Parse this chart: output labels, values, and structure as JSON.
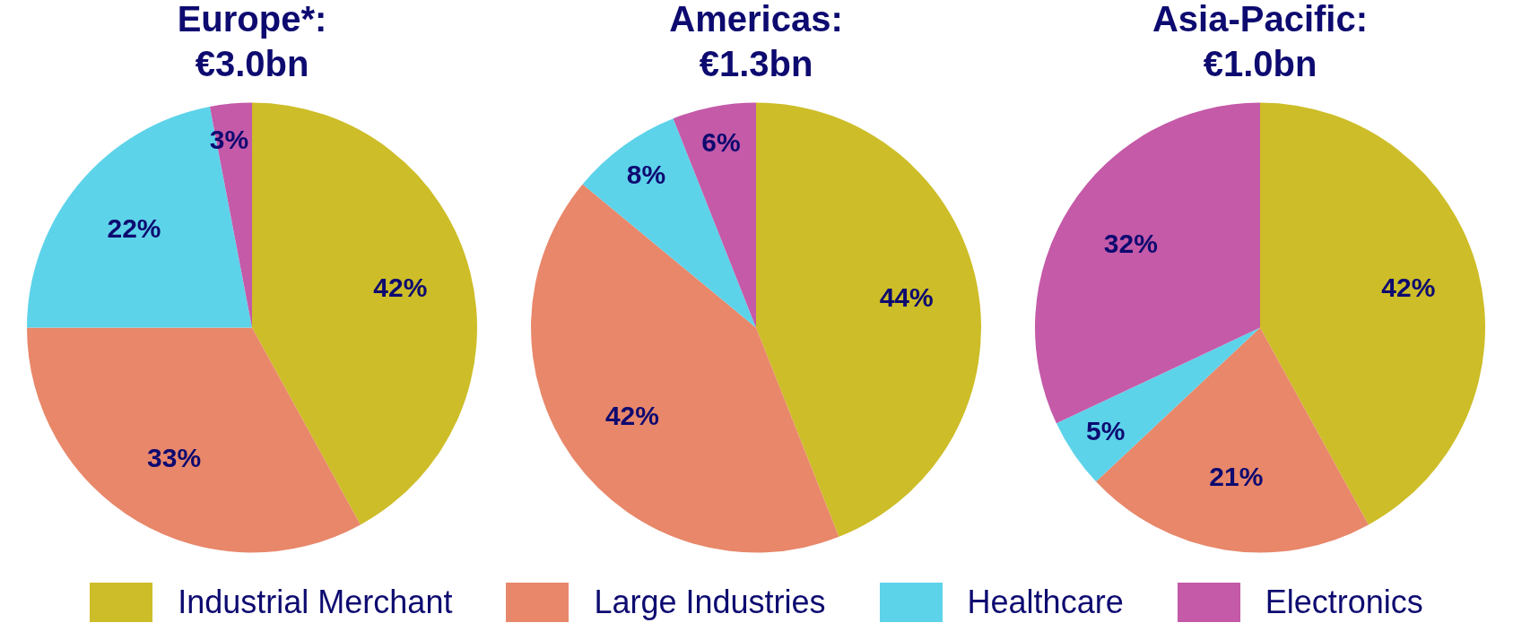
{
  "chart_data": [
    {
      "type": "pie",
      "title": "Europe*:",
      "subtitle": "€3.0bn",
      "categories": [
        "Industrial Merchant",
        "Large Industries",
        "Healthcare",
        "Electronics"
      ],
      "values": [
        42,
        33,
        22,
        3
      ],
      "value_labels": [
        "42%",
        "33%",
        "22%",
        "3%"
      ],
      "colors": [
        "#cdbd28",
        "#e8876a",
        "#5dd3ea",
        "#c45aa8"
      ],
      "legend": "bottom"
    },
    {
      "type": "pie",
      "title": "Americas:",
      "subtitle": "€1.3bn",
      "categories": [
        null,
        null,
        null,
        null
      ],
      "values": [
        44,
        42,
        8,
        6
      ],
      "value_labels": [
        "44%",
        "42%",
        "8%",
        "6%"
      ],
      "colors": [
        "#cdbd28",
        "#e8876a",
        "#5dd3ea",
        "#c45aa8"
      ]
    },
    {
      "type": "pie",
      "title": "Asia-Pacific:",
      "subtitle": "€1.0bn",
      "categories": [
        null,
        null,
        null,
        null
      ],
      "values": [
        42,
        21,
        5,
        32
      ],
      "value_labels": [
        "42%",
        "21%",
        "5%",
        "32%"
      ],
      "colors": [
        "#cdbd28",
        "#e8876a",
        "#5dd3ea",
        "#c45aa8"
      ]
    }
  ]
}
